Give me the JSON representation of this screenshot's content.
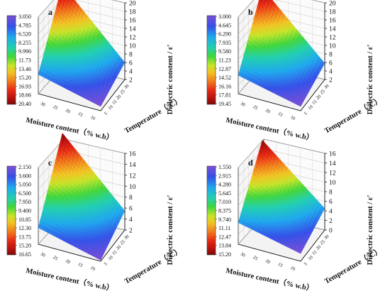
{
  "panels": [
    {
      "letter": "a",
      "colorbar_ticks": [
        "3.050",
        "4.785",
        "6.520",
        "8.255",
        "9.990",
        "11.73",
        "13.46",
        "15.20",
        "16.93",
        "18.66",
        "20.40"
      ],
      "z_ticks": [
        "2",
        "4",
        "6",
        "8",
        "10",
        "12",
        "14",
        "16",
        "18",
        "20"
      ],
      "zlim": [
        2,
        20
      ],
      "x_ticks": [
        "10",
        "15",
        "20",
        "25",
        "30"
      ],
      "y_ticks": [
        "5",
        "10",
        "15",
        "20",
        "25",
        "30"
      ],
      "z_corners": {
        "back": 20.3,
        "left": 6.5,
        "right": 6.0,
        "front": 3.0
      }
    },
    {
      "letter": "b",
      "colorbar_ticks": [
        "3.000",
        "4.645",
        "6.290",
        "7.935",
        "9.580",
        "11.23",
        "12.87",
        "14.52",
        "16.16",
        "17.81",
        "19.45"
      ],
      "z_ticks": [
        "2",
        "4",
        "6",
        "8",
        "10",
        "12",
        "14",
        "16",
        "18",
        "20"
      ],
      "zlim": [
        2,
        20
      ],
      "x_ticks": [
        "10",
        "15",
        "20",
        "25",
        "30"
      ],
      "y_ticks": [
        "5",
        "10",
        "15",
        "20",
        "25",
        "30"
      ],
      "z_corners": {
        "back": 19.5,
        "left": 6.3,
        "right": 5.8,
        "front": 3.0
      }
    },
    {
      "letter": "c",
      "colorbar_ticks": [
        "2.150",
        "3.600",
        "5.050",
        "6.500",
        "7.950",
        "9.400",
        "10.85",
        "12.30",
        "13.75",
        "15.20",
        "16.65"
      ],
      "z_ticks": [
        "2",
        "4",
        "6",
        "8",
        "10",
        "12",
        "14",
        "16"
      ],
      "zlim": [
        2,
        16
      ],
      "x_ticks": [
        "10",
        "15",
        "20",
        "25",
        "30"
      ],
      "y_ticks": [
        "5",
        "10",
        "15",
        "20",
        "25",
        "30"
      ],
      "z_corners": {
        "back": 16.6,
        "left": 5.0,
        "right": 5.5,
        "front": 2.2
      }
    },
    {
      "letter": "d",
      "colorbar_ticks": [
        "1.550",
        "2.915",
        "4.280",
        "5.645",
        "7.010",
        "8.375",
        "9.740",
        "11.11",
        "12.47",
        "13.84",
        "15.20"
      ],
      "z_ticks": [
        "0",
        "2",
        "4",
        "6",
        "8",
        "10",
        "12",
        "14",
        "16"
      ],
      "zlim": [
        0,
        16
      ],
      "x_ticks": [
        "10",
        "15",
        "20",
        "25",
        "30"
      ],
      "y_ticks": [
        "5",
        "10",
        "15",
        "20",
        "25",
        "30"
      ],
      "z_corners": {
        "back": 15.2,
        "left": 4.5,
        "right": 4.5,
        "front": 1.6
      }
    }
  ],
  "labels": {
    "xlabel": "Moisture content（% w.b）",
    "ylabel": "Temperature（°C）",
    "zlabel": "Dielectric constent / ε'"
  },
  "chart_data": [
    {
      "type": "surface",
      "title": "a",
      "xlabel": "Moisture content（% w.b）",
      "ylabel": "Temperature（°C）",
      "zlabel": "Dielectric constent / ε'",
      "x": [
        10,
        30
      ],
      "y": [
        5,
        30
      ],
      "zlim": [
        2,
        20
      ],
      "z": [
        [
          3.0,
          6.0
        ],
        [
          6.5,
          20.3
        ]
      ],
      "color_range": [
        3.05,
        20.4
      ]
    },
    {
      "type": "surface",
      "title": "b",
      "xlabel": "Moisture content（% w.b）",
      "ylabel": "Temperature（°C）",
      "zlabel": "Dielectric constent / ε'",
      "x": [
        10,
        30
      ],
      "y": [
        5,
        30
      ],
      "zlim": [
        2,
        20
      ],
      "z": [
        [
          3.0,
          5.8
        ],
        [
          6.3,
          19.5
        ]
      ],
      "color_range": [
        3.0,
        19.45
      ]
    },
    {
      "type": "surface",
      "title": "c",
      "xlabel": "Moisture content（% w.b）",
      "ylabel": "Temperature（°C）",
      "zlabel": "Dielectric constent / ε'",
      "x": [
        10,
        30
      ],
      "y": [
        5,
        30
      ],
      "zlim": [
        2,
        16
      ],
      "z": [
        [
          2.2,
          5.5
        ],
        [
          5.0,
          16.6
        ]
      ],
      "color_range": [
        2.15,
        16.65
      ]
    },
    {
      "type": "surface",
      "title": "d",
      "xlabel": "Moisture content（% w.b）",
      "ylabel": "Temperature（°C）",
      "zlabel": "Dielectric constent / ε'",
      "x": [
        10,
        30
      ],
      "y": [
        5,
        30
      ],
      "zlim": [
        0,
        16
      ],
      "z": [
        [
          1.6,
          4.5
        ],
        [
          4.5,
          15.2
        ]
      ],
      "color_range": [
        1.55,
        15.2
      ]
    }
  ]
}
